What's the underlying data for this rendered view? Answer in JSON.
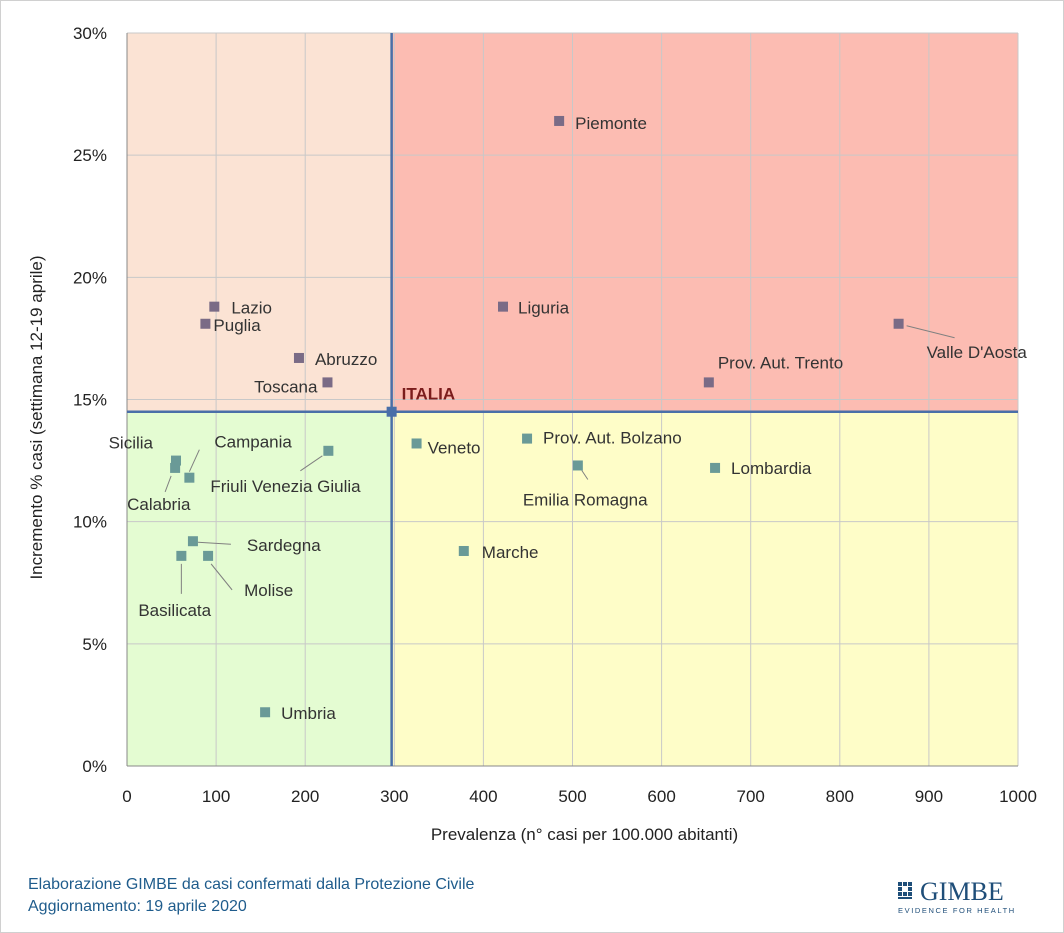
{
  "chart_data": {
    "type": "scatter",
    "xlabel": "Prevalenza  (n° casi per 100.000 abitanti)",
    "ylabel": "Incremento %  casi (settimana 12-19 aprile)",
    "xlim": [
      0,
      1000
    ],
    "ylim": [
      0,
      30
    ],
    "x_ticks": [
      0,
      100,
      200,
      300,
      400,
      500,
      600,
      700,
      800,
      900,
      1000
    ],
    "y_ticks": [
      0,
      5,
      10,
      15,
      20,
      25,
      30
    ],
    "x_tick_labels": [
      "0",
      "100",
      "200",
      "300",
      "400",
      "500",
      "600",
      "700",
      "800",
      "900",
      "1000"
    ],
    "y_tick_labels": [
      "0%",
      "5%",
      "10%",
      "15%",
      "20%",
      "25%",
      "30%"
    ],
    "grid": true,
    "reference": {
      "label": "ITALIA",
      "x": 297,
      "y": 14.5
    },
    "quadrant_colors": {
      "top_left": "#fbe3d4",
      "top_right": "#fcbcb2",
      "bottom_left": "#e4fcd2",
      "bottom_right": "#fefdc8"
    },
    "marker_colors": {
      "upper": "#7a6b86",
      "lower": "#6a9a97"
    },
    "reference_line_color": "#4a6fa8",
    "points": [
      {
        "name": "Piemonte",
        "x": 485,
        "y": 26.4
      },
      {
        "name": "Liguria",
        "x": 422,
        "y": 18.8
      },
      {
        "name": "Valle D'Aosta",
        "x": 866,
        "y": 18.1
      },
      {
        "name": "Prov. Aut. Trento",
        "x": 653,
        "y": 15.7
      },
      {
        "name": "Lazio",
        "x": 98,
        "y": 18.8
      },
      {
        "name": "Puglia",
        "x": 88,
        "y": 18.1
      },
      {
        "name": "Abruzzo",
        "x": 193,
        "y": 16.7
      },
      {
        "name": "Toscana",
        "x": 225,
        "y": 15.7
      },
      {
        "name": "Veneto",
        "x": 325,
        "y": 13.2
      },
      {
        "name": "Prov. Aut. Bolzano",
        "x": 449,
        "y": 13.4
      },
      {
        "name": "Lombardia",
        "x": 660,
        "y": 12.2
      },
      {
        "name": "Emilia Romagna",
        "x": 506,
        "y": 12.3
      },
      {
        "name": "Marche",
        "x": 378,
        "y": 8.8
      },
      {
        "name": "Sicilia",
        "x": 55,
        "y": 12.5
      },
      {
        "name": "Calabria",
        "x": 54,
        "y": 12.2
      },
      {
        "name": "Campania",
        "x": 70,
        "y": 11.8
      },
      {
        "name": "Friuli Venezia Giulia",
        "x": 226,
        "y": 12.9
      },
      {
        "name": "Sardegna",
        "x": 74,
        "y": 9.2
      },
      {
        "name": "Basilicata",
        "x": 61,
        "y": 8.6
      },
      {
        "name": "Molise",
        "x": 91,
        "y": 8.6
      },
      {
        "name": "Umbria",
        "x": 155,
        "y": 2.2
      }
    ]
  },
  "footer": {
    "line1": "Elaborazione GIMBE da casi confermati dalla Protezione Civile",
    "line2": "Aggiornamento: 19 aprile 2020"
  },
  "logo": {
    "name": "GIMBE",
    "tagline": "EVIDENCE FOR HEALTH"
  }
}
